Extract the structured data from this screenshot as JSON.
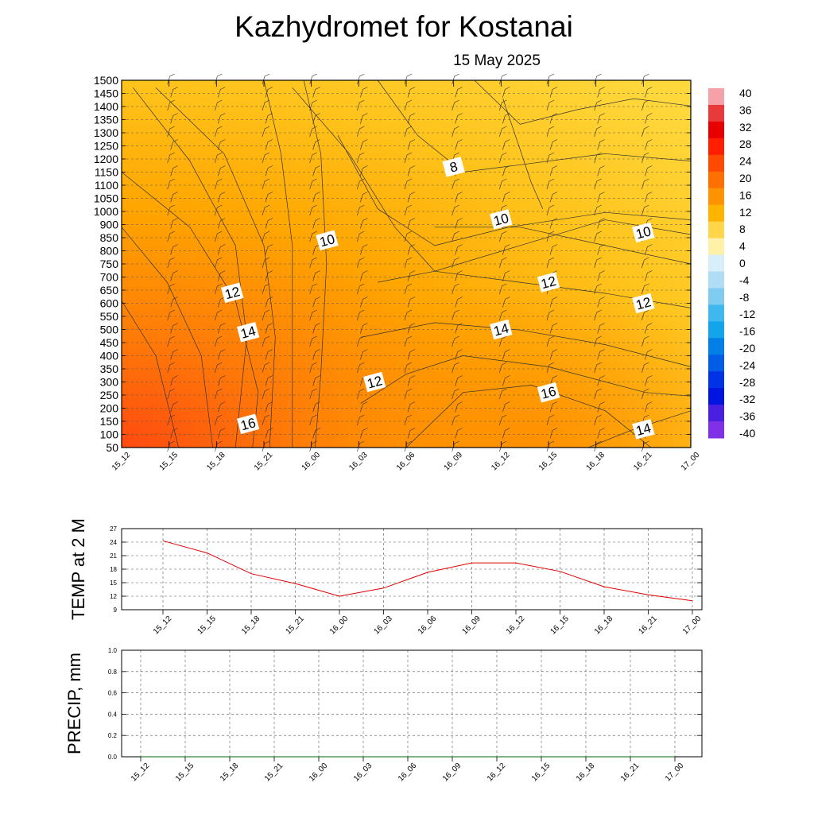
{
  "title": "Kazhydromet  for Kostanai",
  "subtitle": "15 May 2025",
  "chart_data": [
    {
      "type": "heatmap",
      "panel": "cross-section",
      "x_ticks": [
        "15_12",
        "15_15",
        "15_18",
        "15_21",
        "16_00",
        "16_03",
        "16_06",
        "16_09",
        "16_12",
        "16_15",
        "16_18",
        "16_21",
        "17_00"
      ],
      "y_ticks": [
        50,
        100,
        150,
        200,
        250,
        300,
        350,
        400,
        450,
        500,
        550,
        600,
        650,
        700,
        750,
        800,
        850,
        900,
        1000,
        1050,
        1100,
        1150,
        1200,
        1250,
        1300,
        1350,
        1400,
        1450,
        1500
      ],
      "colorbar": {
        "levels": [
          40,
          36,
          32,
          28,
          24,
          20,
          16,
          12,
          8,
          4,
          0,
          -4,
          -8,
          -12,
          -16,
          -20,
          -24,
          -28,
          -32,
          -36,
          -40
        ],
        "colors": [
          "#f6a0a8",
          "#e83a3a",
          "#e80000",
          "#ff1e00",
          "#ff4a00",
          "#ff7000",
          "#ff9300",
          "#ffb400",
          "#ffd54a",
          "#fff2a8",
          "#d8eefa",
          "#b0ddf5",
          "#7fccf0",
          "#3fb8ef",
          "#13a5ec",
          "#0080e6",
          "#005ee6",
          "#0033e6",
          "#0015e0",
          "#4a20e0",
          "#8030e6"
        ]
      },
      "contour_labels": [
        {
          "value": "8",
          "tick": "16_09",
          "level": 1170
        },
        {
          "value": "10",
          "tick": "16_01",
          "level": 840
        },
        {
          "value": "10",
          "tick": "16_12",
          "level": 940
        },
        {
          "value": "10",
          "tick": "16_21",
          "level": 870
        },
        {
          "value": "12",
          "tick": "15_19",
          "level": 640
        },
        {
          "value": "12",
          "tick": "16_15",
          "level": 680
        },
        {
          "value": "12",
          "tick": "16_21",
          "level": 600
        },
        {
          "value": "12",
          "tick": "16_04",
          "level": 300
        },
        {
          "value": "14",
          "tick": "15_20",
          "level": 490
        },
        {
          "value": "14",
          "tick": "16_12",
          "level": 500
        },
        {
          "value": "14",
          "tick": "16_21",
          "level": 120
        },
        {
          "value": "16",
          "tick": "15_20",
          "level": 140
        },
        {
          "value": "16",
          "tick": "16_15",
          "level": 260
        }
      ]
    },
    {
      "type": "line",
      "panel": "temperature",
      "ylabel": "TEMP at 2 M",
      "ylim": [
        9,
        27
      ],
      "y_ticks": [
        9,
        12,
        15,
        18,
        21,
        24,
        27
      ],
      "categories": [
        "15_12",
        "15_15",
        "15_18",
        "15_21",
        "16_00",
        "16_03",
        "16_06",
        "16_09",
        "16_12",
        "16_15",
        "16_18",
        "16_21",
        "17_00"
      ],
      "values": [
        24.3,
        21.6,
        17.0,
        14.8,
        12.0,
        13.8,
        17.3,
        19.4,
        19.4,
        17.5,
        14.1,
        12.3,
        11.0
      ],
      "line_color": "#e00000"
    },
    {
      "type": "line",
      "panel": "precipitation",
      "ylabel": "PRECIP, mm",
      "ylim": [
        0.0,
        1.0
      ],
      "y_ticks": [
        "0.0",
        "0.2",
        "0.4",
        "0.6",
        "0.8",
        "1.0"
      ],
      "categories": [
        "15_12",
        "15_15",
        "15_18",
        "15_21",
        "16_00",
        "16_03",
        "16_06",
        "16_09",
        "16_12",
        "16_15",
        "16_18",
        "16_21",
        "17_00"
      ],
      "values": [
        0,
        0,
        0,
        0,
        0,
        0,
        0,
        0,
        0,
        0,
        0,
        0,
        0
      ],
      "line_color": "#2e8b2e"
    }
  ]
}
